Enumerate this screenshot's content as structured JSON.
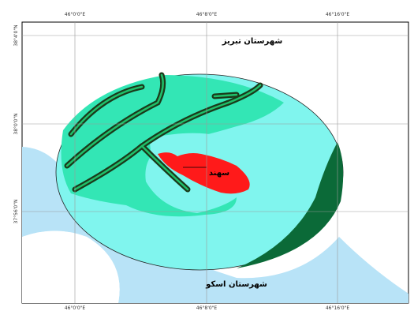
{
  "map": {
    "top_labels": [
      "46°0'0\"E",
      "46°8'0\"E",
      "46°16'0\"E"
    ],
    "bottom_labels": [
      "46°0'0\"E",
      "46°8'0\"E",
      "46°16'0\"E"
    ],
    "left_labels": [
      "38°4'0\"N",
      "38°0'0\"N",
      "37°56'0\"N"
    ],
    "places": {
      "tabriz": "شهرستان تبریز",
      "osku": "شهرستان اسکو",
      "sahand": "سهند"
    }
  }
}
